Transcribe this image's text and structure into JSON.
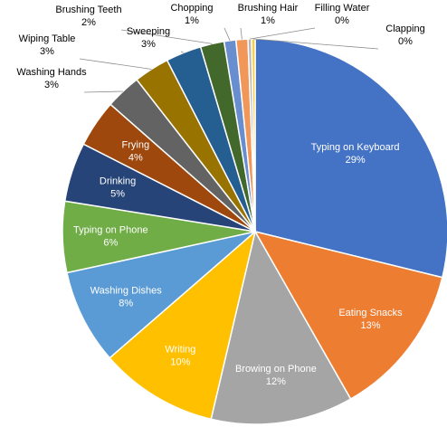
{
  "chart_data": {
    "type": "pie",
    "slices": [
      {
        "label": "Typing on Keyboard",
        "pct_label": "29%",
        "value": 29,
        "color": "#4472c4",
        "inside": true
      },
      {
        "label": "Eating Snacks",
        "pct_label": "13%",
        "value": 13,
        "color": "#ed7d31",
        "inside": true
      },
      {
        "label": "Browing on Phone",
        "pct_label": "12%",
        "value": 12,
        "color": "#a5a5a5",
        "inside": true
      },
      {
        "label": "Writing",
        "pct_label": "10%",
        "value": 10,
        "color": "#ffc000",
        "inside": true
      },
      {
        "label": "Washing Dishes",
        "pct_label": "8%",
        "value": 8,
        "color": "#5b9bd5",
        "inside": true
      },
      {
        "label": "Typing on Phone",
        "pct_label": "6%",
        "value": 6,
        "color": "#70ad47",
        "inside": true
      },
      {
        "label": "Drinking",
        "pct_label": "5%",
        "value": 5,
        "color": "#264478",
        "inside": true
      },
      {
        "label": "Frying",
        "pct_label": "4%",
        "value": 4,
        "color": "#9e480e",
        "inside": true
      },
      {
        "label": "Washing Hands",
        "pct_label": "3%",
        "value": 3,
        "color": "#636363",
        "inside": false
      },
      {
        "label": "Wiping Table",
        "pct_label": "3%",
        "value": 3,
        "color": "#997300",
        "inside": false
      },
      {
        "label": "Sweeping",
        "pct_label": "3%",
        "value": 3,
        "color": "#255e91",
        "inside": false
      },
      {
        "label": "Brushing Teeth",
        "pct_label": "2%",
        "value": 2,
        "color": "#43682b",
        "inside": false
      },
      {
        "label": "Chopping",
        "pct_label": "1%",
        "value": 1,
        "color": "#698ed0",
        "inside": false
      },
      {
        "label": "Brushing Hair",
        "pct_label": "1%",
        "value": 1,
        "color": "#f1975a",
        "inside": false
      },
      {
        "label": "Filling Water",
        "pct_label": "0%",
        "value": 0.3,
        "color": "#b7b7b7",
        "inside": false
      },
      {
        "label": "Clapping",
        "pct_label": "0%",
        "value": 0.3,
        "color": "#ffcd33",
        "inside": false
      }
    ]
  }
}
